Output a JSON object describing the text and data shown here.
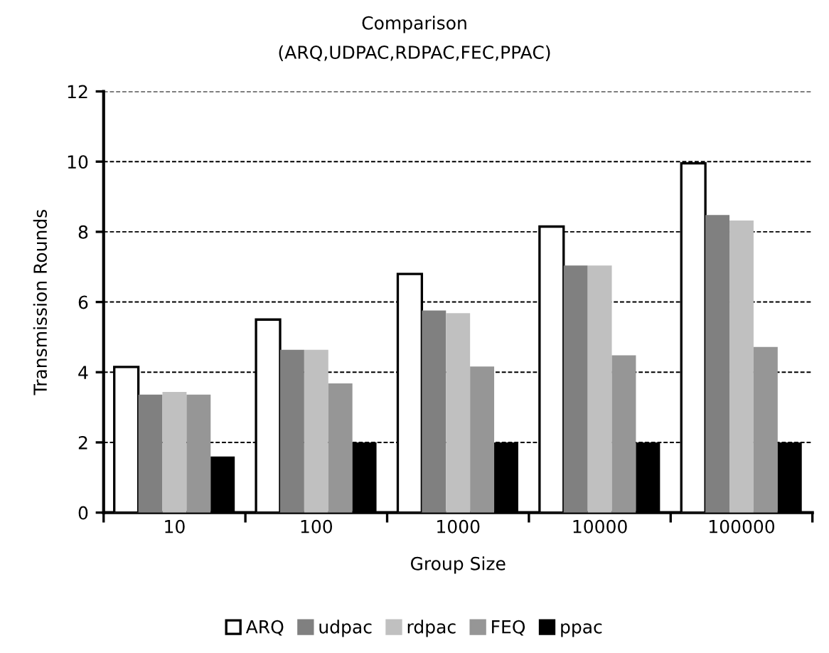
{
  "chart_data": {
    "type": "bar",
    "title": "Comparison",
    "subtitle": "(ARQ,UDPAC,RDPAC,FEC,PPAC)",
    "xlabel": "Group Size",
    "ylabel": "Transmission Rounds",
    "categories": [
      "10",
      "100",
      "1000",
      "10000",
      "100000"
    ],
    "series": [
      {
        "name": "ARQ",
        "color": "#ffffff",
        "values": [
          4.15,
          5.5,
          6.8,
          8.15,
          9.95
        ]
      },
      {
        "name": "udpac",
        "color": "#808080",
        "values": [
          3.36,
          4.64,
          5.76,
          7.04,
          8.48
        ]
      },
      {
        "name": "rdpac",
        "color": "#c0c0c0",
        "values": [
          3.44,
          4.64,
          5.68,
          7.04,
          8.32
        ]
      },
      {
        "name": "FEQ",
        "color": "#969696",
        "values": [
          3.36,
          3.68,
          4.16,
          4.48,
          4.72
        ]
      },
      {
        "name": "ppac",
        "color": "#000000",
        "values": [
          1.6,
          2,
          2,
          2,
          2
        ]
      }
    ],
    "ylim": [
      0,
      12
    ],
    "yticks": [
      0,
      2,
      4,
      6,
      8,
      10,
      12
    ],
    "grid": "y",
    "legend": "bottom"
  }
}
